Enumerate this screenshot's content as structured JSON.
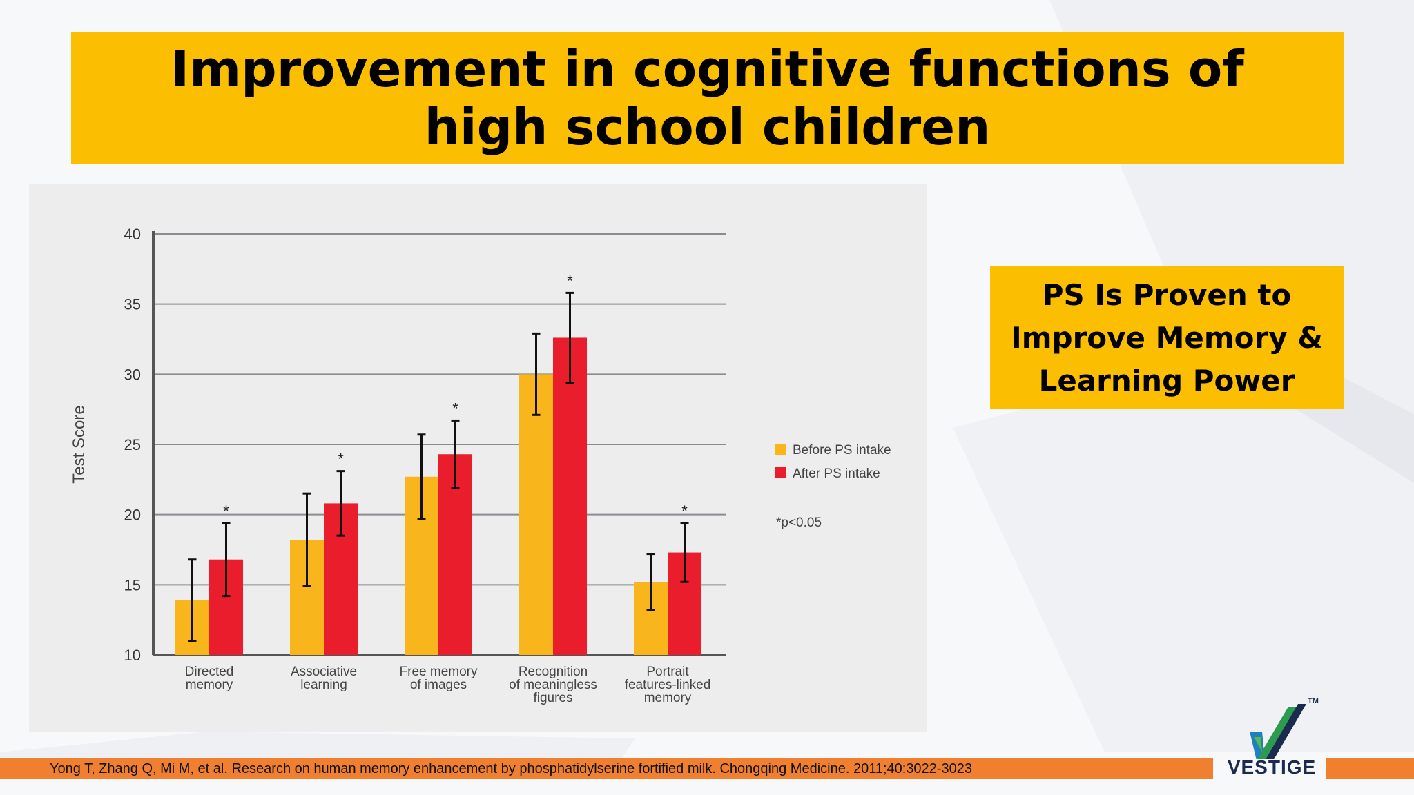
{
  "slide": {
    "title": "Improvement in cognitive functions of high school children",
    "callout": "PS Is Proven to\nImprove Memory  &\nLearning Power",
    "citation": "Yong T, Zhang Q, Mi M, et al. Research on human memory enhancement by phosphatidylserine fortified milk. Chongqing Medicine. 2011;40:3022-3023",
    "logo_text": "VESTIGE",
    "logo_tm": "TM",
    "colors": {
      "accent": "#fbbe00",
      "footer": "#f07f2f",
      "before": "#f8b61c",
      "after": "#ea1d2c"
    }
  },
  "chart_data": {
    "type": "bar",
    "title": "",
    "xlabel": "",
    "ylabel": "Test Score",
    "ylim": [
      10,
      40
    ],
    "yticks": [
      10,
      15,
      20,
      25,
      30,
      35,
      40
    ],
    "grid": true,
    "legend_position": "right",
    "categories": [
      [
        "Directed",
        "memory"
      ],
      [
        "Associative",
        "learning"
      ],
      [
        "Free memory",
        "of images"
      ],
      [
        "Recognition",
        "of meaningless",
        "figures"
      ],
      [
        "Portrait",
        "features-linked",
        "memory"
      ]
    ],
    "series": [
      {
        "name": "Before PS intake",
        "color": "#f8b61c",
        "values": [
          13.9,
          18.2,
          22.7,
          30.0,
          15.2
        ],
        "errors": [
          2.9,
          3.3,
          3.0,
          2.9,
          2.0
        ]
      },
      {
        "name": "After PS intake",
        "color": "#ea1d2c",
        "values": [
          16.8,
          20.8,
          24.3,
          32.6,
          17.3
        ],
        "errors": [
          2.6,
          2.3,
          2.4,
          3.2,
          2.1
        ]
      }
    ],
    "significance_marks": [
      "*",
      "*",
      "*",
      "*",
      "*"
    ],
    "significance_note": "*p<0.05"
  }
}
